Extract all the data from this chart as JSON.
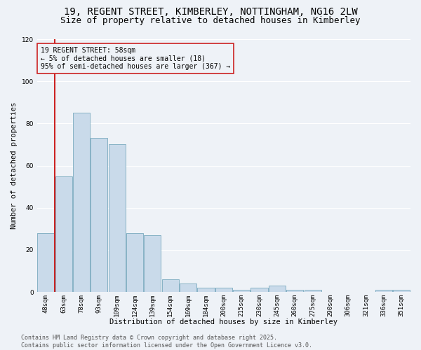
{
  "title_line1": "19, REGENT STREET, KIMBERLEY, NOTTINGHAM, NG16 2LW",
  "title_line2": "Size of property relative to detached houses in Kimberley",
  "categories": [
    "48sqm",
    "63sqm",
    "78sqm",
    "93sqm",
    "109sqm",
    "124sqm",
    "139sqm",
    "154sqm",
    "169sqm",
    "184sqm",
    "200sqm",
    "215sqm",
    "230sqm",
    "245sqm",
    "260sqm",
    "275sqm",
    "290sqm",
    "306sqm",
    "321sqm",
    "336sqm",
    "351sqm"
  ],
  "values": [
    28,
    55,
    85,
    73,
    70,
    28,
    27,
    6,
    4,
    2,
    2,
    1,
    2,
    3,
    1,
    1,
    0,
    0,
    0,
    1,
    1
  ],
  "bar_color": "#c9daea",
  "bar_edge_color": "#7aaabe",
  "background_color": "#eef2f7",
  "ylabel": "Number of detached properties",
  "xlabel": "Distribution of detached houses by size in Kimberley",
  "ylim": [
    0,
    120
  ],
  "annotation_line1": "19 REGENT STREET: 58sqm",
  "annotation_line2": "← 5% of detached houses are smaller (18)",
  "annotation_line3": "95% of semi-detached houses are larger (367) →",
  "vline_color": "#cc2222",
  "footer_line1": "Contains HM Land Registry data © Crown copyright and database right 2025.",
  "footer_line2": "Contains public sector information licensed under the Open Government Licence v3.0.",
  "title_fontsize": 10,
  "subtitle_fontsize": 9,
  "axis_label_fontsize": 7.5,
  "tick_fontsize": 6.5,
  "annotation_fontsize": 7,
  "footer_fontsize": 6
}
